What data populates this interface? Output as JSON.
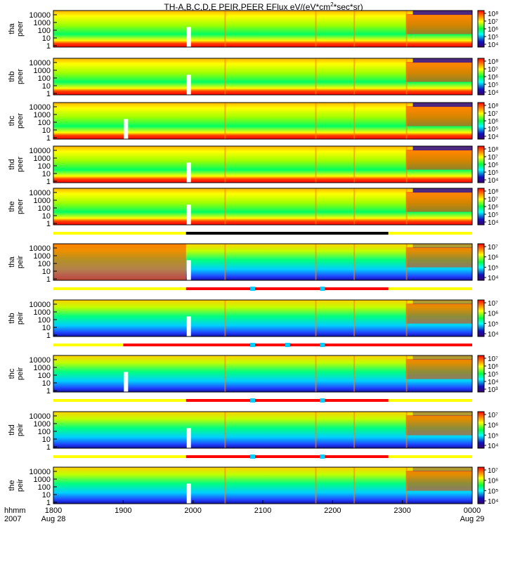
{
  "figure": {
    "title_main": "TH-A,B,C,D,E PEIR,PEER EFlux eV/(eV*cm",
    "title_sup": "2",
    "title_end": "*sec*sr)"
  },
  "chart_data": {
    "type": "heatmap",
    "x_axis": {
      "ticks": [
        "1800",
        "1900",
        "2000",
        "2100",
        "2200",
        "2300",
        "0000"
      ],
      "tick_values_hhmm": [
        1800,
        1900,
        2000,
        2100,
        2200,
        2300,
        2400
      ],
      "date_labels": {
        "first": "Aug 28",
        "last": "Aug 29"
      },
      "unit_label": "hhmm",
      "year_label": "2007"
    },
    "colors": {
      "low": "#1010a0",
      "mid_low": "#00ffff",
      "mid": "#00ff40",
      "mid_high": "#ffff00",
      "high": "#ff0000",
      "data_gap": "#ffffff",
      "mode_bar_fast": "#ff0000",
      "mode_bar_slow": "#ffff00",
      "mode_bar_burst": "#00d0ff",
      "mode_bar_black": "#000000"
    },
    "panels": [
      {
        "probe": "tha",
        "instrument": "peer",
        "yticks": [
          "10000",
          "1000",
          "100",
          "10",
          "1"
        ],
        "cbar_ticks": [
          "10⁸",
          "10⁷",
          "10⁶",
          "10⁵",
          "10⁴"
        ]
      },
      {
        "probe": "thb",
        "instrument": "peer",
        "yticks": [
          "10000",
          "1000",
          "100",
          "10",
          "1"
        ],
        "cbar_ticks": [
          "10⁸",
          "10⁷",
          "10⁶",
          "10⁵",
          "10⁴"
        ]
      },
      {
        "probe": "thc",
        "instrument": "peer",
        "yticks": [
          "10000",
          "1000",
          "100",
          "10",
          "1"
        ],
        "cbar_ticks": [
          "10⁸",
          "10⁷",
          "10⁶",
          "10⁵",
          "10⁴"
        ]
      },
      {
        "probe": "thd",
        "instrument": "peer",
        "yticks": [
          "10000",
          "1000",
          "100",
          "10",
          "1"
        ],
        "cbar_ticks": [
          "10⁸",
          "10⁷",
          "10⁶",
          "10⁵",
          "10⁴"
        ]
      },
      {
        "probe": "the",
        "instrument": "peer",
        "yticks": [
          "10000",
          "1000",
          "100",
          "10",
          "1"
        ],
        "cbar_ticks": [
          "10⁸",
          "10⁷",
          "10⁶",
          "10⁵",
          "10⁴"
        ]
      },
      {
        "probe": "tha",
        "instrument": "peir",
        "yticks": [
          "10000",
          "1000",
          "100",
          "10",
          "1"
        ],
        "cbar_ticks": [
          "10⁷",
          "10⁶",
          "10⁵",
          "10⁴"
        ]
      },
      {
        "probe": "thb",
        "instrument": "peir",
        "yticks": [
          "10000",
          "1000",
          "100",
          "10",
          "1"
        ],
        "cbar_ticks": [
          "10⁷",
          "10⁶",
          "10⁵",
          "10⁴"
        ]
      },
      {
        "probe": "thc",
        "instrument": "peir",
        "yticks": [
          "10000",
          "1000",
          "100",
          "10",
          "1"
        ],
        "cbar_ticks": [
          "10⁷",
          "10⁶",
          "10⁵",
          "10⁴",
          "10³"
        ]
      },
      {
        "probe": "thd",
        "instrument": "peir",
        "yticks": [
          "10000",
          "1000",
          "100",
          "10",
          "1"
        ],
        "cbar_ticks": [
          "10⁷",
          "10⁶",
          "10⁵",
          "10⁴"
        ]
      },
      {
        "probe": "the",
        "instrument": "peir",
        "yticks": [
          "10000",
          "1000",
          "100",
          "10",
          "1"
        ],
        "cbar_ticks": [
          "10⁷",
          "10⁶",
          "10⁵",
          "10⁴"
        ]
      }
    ],
    "mode_bars": [
      {
        "after_panel": 4,
        "segments": [
          [
            1800,
            1900,
            "mode_bar_slow"
          ],
          [
            1900,
            1990,
            "mode_bar_slow"
          ],
          [
            1990,
            2280,
            "mode_bar_black"
          ],
          [
            2280,
            2400,
            "mode_bar_slow"
          ]
        ]
      },
      {
        "after_panel": 5,
        "segments": [
          [
            1800,
            1990,
            "mode_bar_slow"
          ],
          [
            1990,
            2280,
            "mode_bar_fast"
          ],
          [
            2280,
            2400,
            "mode_bar_slow"
          ]
        ],
        "bursts": [
          2085,
          2185
        ]
      },
      {
        "after_panel": 6,
        "segments": [
          [
            1800,
            1900,
            "mode_bar_slow"
          ],
          [
            1900,
            2400,
            "mode_bar_fast"
          ]
        ],
        "bursts": [
          2085,
          2135,
          2185
        ]
      },
      {
        "after_panel": 7,
        "segments": [
          [
            1800,
            1990,
            "mode_bar_slow"
          ],
          [
            1990,
            2280,
            "mode_bar_fast"
          ],
          [
            2280,
            2400,
            "mode_bar_slow"
          ]
        ],
        "bursts": [
          2085,
          2185
        ]
      },
      {
        "after_panel": 8,
        "segments": [
          [
            1800,
            1990,
            "mode_bar_slow"
          ],
          [
            1990,
            2280,
            "mode_bar_fast"
          ],
          [
            2280,
            2400,
            "mode_bar_slow"
          ]
        ],
        "bursts": [
          2085,
          2185
        ]
      }
    ]
  }
}
